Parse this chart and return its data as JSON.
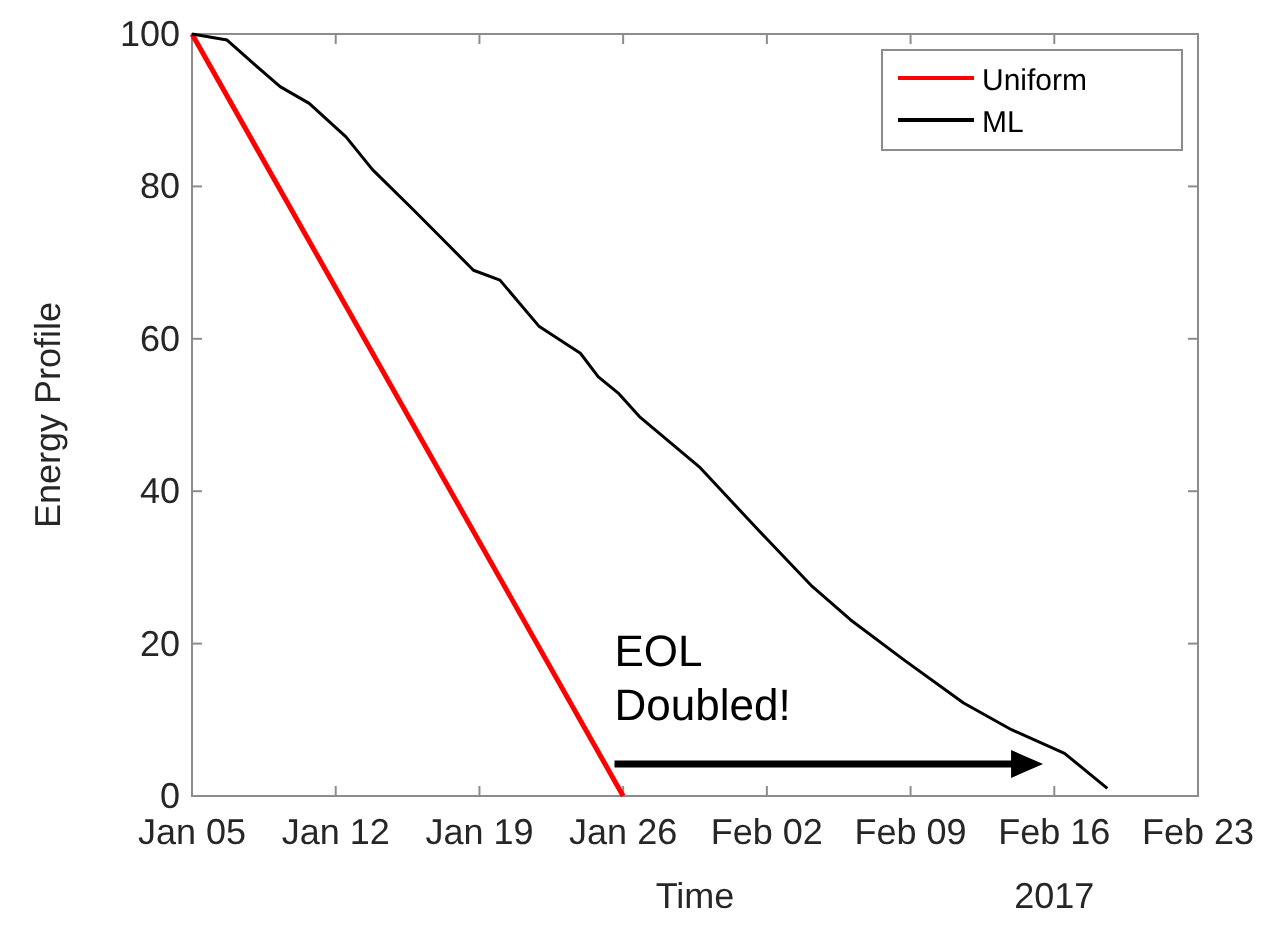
{
  "chart_data": {
    "type": "line",
    "xlabel": "Time",
    "ylabel": "Energy Profile",
    "xlim": [
      "2017-01-05",
      "2017-02-23"
    ],
    "ylim": [
      0,
      100
    ],
    "xticks": [
      {
        "value": "2017-01-05",
        "label": "Jan 05"
      },
      {
        "value": "2017-01-12",
        "label": "Jan 12"
      },
      {
        "value": "2017-01-19",
        "label": "Jan 19"
      },
      {
        "value": "2017-01-26",
        "label": "Jan 26"
      },
      {
        "value": "2017-02-02",
        "label": "Feb 02"
      },
      {
        "value": "2017-02-09",
        "label": "Feb 09"
      },
      {
        "value": "2017-02-16",
        "label": "Feb 16"
      },
      {
        "value": "2017-02-23",
        "label": "Feb 23"
      }
    ],
    "yticks": [
      0,
      20,
      40,
      60,
      80,
      100
    ],
    "legend": "top right",
    "grid": false,
    "marker": "none",
    "line_style": "solid",
    "annotations": [
      "EOL Doubled!",
      "2017"
    ],
    "series": [
      {
        "name": "Uniform",
        "color": "#ff0000",
        "x": [
          "2017-01-05",
          "2017-01-26"
        ],
        "values": [
          100,
          0
        ]
      },
      {
        "name": "ML",
        "color": "#000000",
        "x": [
          "2017-01-05",
          "2017-01-06T17:00",
          "2017-01-08",
          "2017-01-09T07:00",
          "2017-01-10T17:00",
          "2017-01-12T12:00",
          "2017-01-13T19:00",
          "2017-01-15T19:00",
          "2017-01-17T10:00",
          "2017-01-18T17:00",
          "2017-01-20",
          "2017-01-21T22:00",
          "2017-01-23T22:00",
          "2017-01-24T19:00",
          "2017-01-25T19:00",
          "2017-01-26T19:00",
          "2017-01-29T17:00",
          "2017-02-01T14:00",
          "2017-02-04T05:00",
          "2017-02-06T02:00",
          "2017-02-08T17:00",
          "2017-02-11T14:00",
          "2017-02-13T22:00",
          "2017-02-16T12:00",
          "2017-02-18T14:00"
        ],
        "values": [
          100,
          99.2,
          96.1,
          93.1,
          90.9,
          86.5,
          82.2,
          76.9,
          72.5,
          69.0,
          67.7,
          61.6,
          58.1,
          55.0,
          52.8,
          49.8,
          43.2,
          34.9,
          27.5,
          23.1,
          17.8,
          12.2,
          8.7,
          5.6,
          1
        ]
      }
    ]
  }
}
